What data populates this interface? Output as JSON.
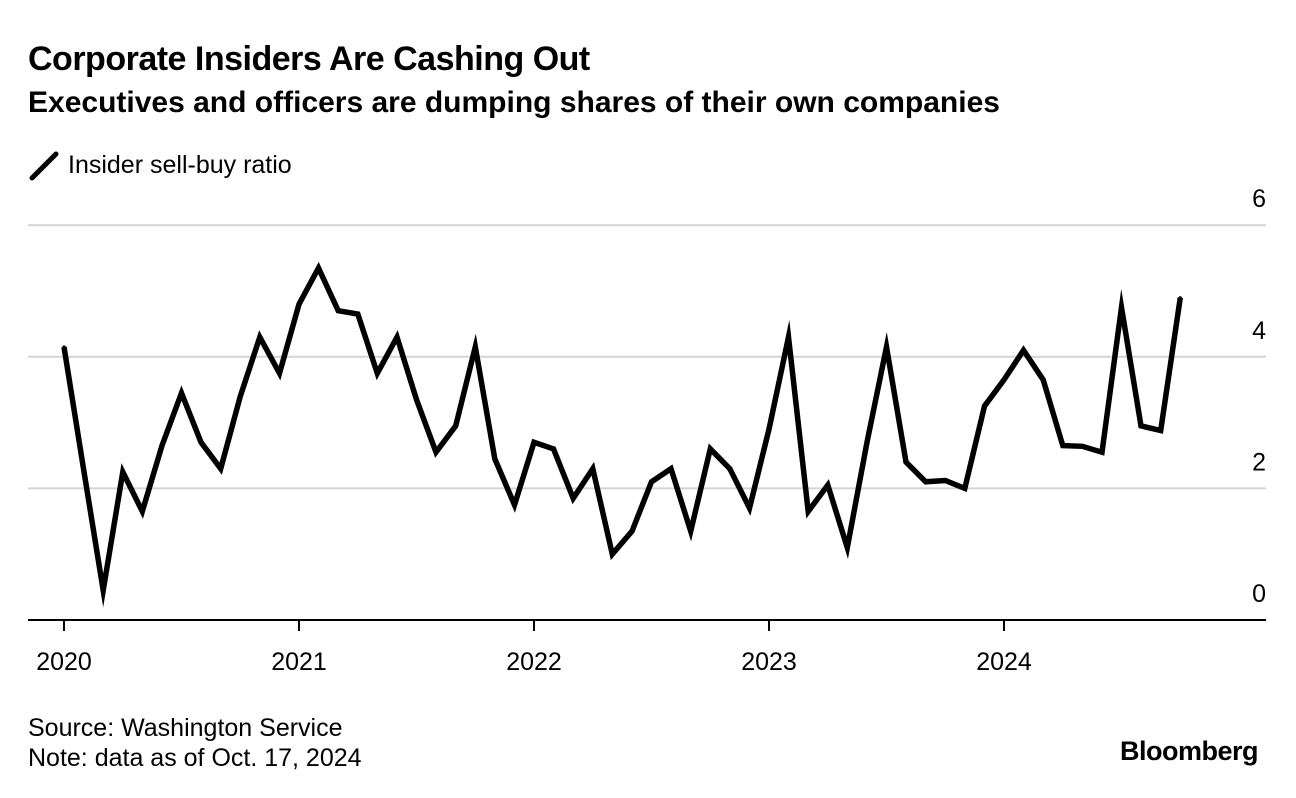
{
  "chart_data": {
    "type": "line",
    "title": "Corporate Insiders Are Cashing Out",
    "subtitle": "Executives and officers are dumping shares of their own companies",
    "xlabel": "",
    "ylabel": "",
    "x_ticks": [
      "2020",
      "2021",
      "2022",
      "2023",
      "2024"
    ],
    "y_ticks": [
      "0",
      "2",
      "4",
      "6"
    ],
    "ylim": [
      0,
      6
    ],
    "grid": true,
    "legend_position": "top-left",
    "series": [
      {
        "name": "Insider sell-buy ratio",
        "color": "#000000",
        "dates": [
          2020.0,
          2020.083,
          2020.167,
          2020.25,
          2020.333,
          2020.417,
          2020.5,
          2020.583,
          2020.667,
          2020.75,
          2020.833,
          2020.917,
          2021.0,
          2021.083,
          2021.167,
          2021.25,
          2021.333,
          2021.417,
          2021.5,
          2021.583,
          2021.667,
          2021.75,
          2021.833,
          2021.917,
          2022.0,
          2022.083,
          2022.167,
          2022.25,
          2022.333,
          2022.417,
          2022.5,
          2022.583,
          2022.667,
          2022.75,
          2022.833,
          2022.917,
          2023.0,
          2023.083,
          2023.167,
          2023.25,
          2023.333,
          2023.417,
          2023.5,
          2023.583,
          2023.667,
          2023.75,
          2023.833,
          2023.917,
          2024.0,
          2024.083,
          2024.167,
          2024.25,
          2024.333,
          2024.417,
          2024.5,
          2024.583,
          2024.667,
          2024.75
        ],
        "values": [
          4.15,
          2.3,
          0.45,
          2.25,
          1.65,
          2.65,
          3.45,
          2.7,
          2.3,
          3.4,
          4.3,
          3.75,
          4.8,
          5.35,
          4.7,
          4.65,
          3.75,
          4.3,
          3.35,
          2.55,
          2.95,
          4.15,
          2.45,
          1.75,
          2.7,
          2.6,
          1.85,
          2.3,
          1.0,
          1.35,
          2.1,
          2.3,
          1.35,
          2.6,
          2.3,
          1.7,
          2.9,
          4.3,
          1.65,
          2.05,
          1.1,
          2.7,
          4.15,
          2.4,
          2.1,
          2.12,
          2.0,
          3.25,
          3.65,
          4.1,
          3.65,
          2.65,
          2.64,
          2.55,
          4.75,
          2.95,
          2.88,
          4.9
        ]
      }
    ]
  },
  "legend": {
    "label": "Insider sell-buy ratio"
  },
  "footer": {
    "source": "Source: Washington Service",
    "note": "Note: data as of Oct. 17, 2024"
  },
  "brand": "Bloomberg"
}
